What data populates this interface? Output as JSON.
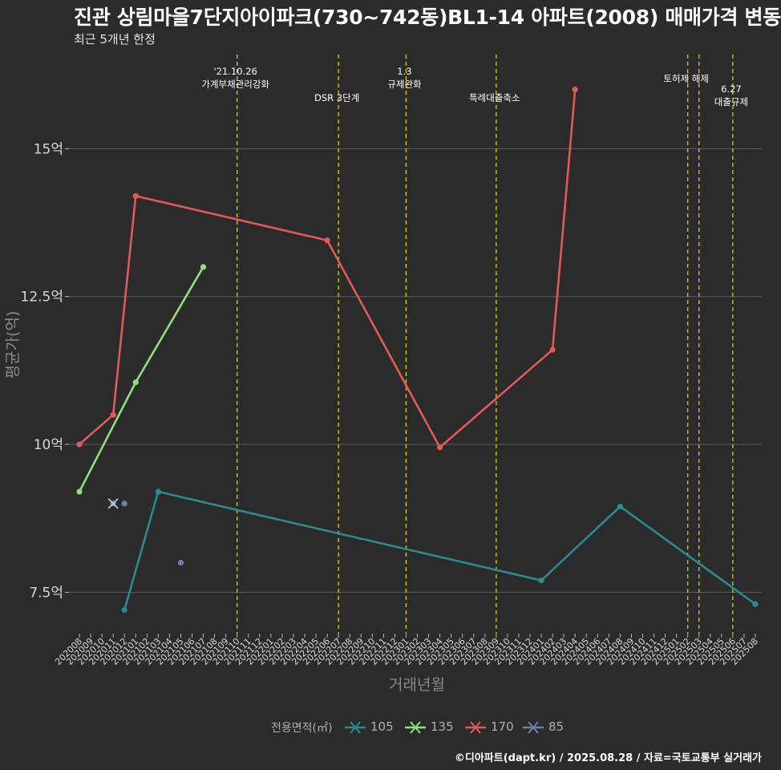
{
  "header": {
    "title": "진관 상림마을7단지아이파크(730~742동)BL1-14 아파트(2008) 매매가격 변동",
    "subtitle": "최근 5개년 한정"
  },
  "caption": "©디아파트(dapt.kr) / 2025.08.28 / 자료=국토교통부 실거래가",
  "legend": {
    "title": "전용면적(㎡)",
    "items": [
      {
        "label": "105",
        "color": "#2b8c8c"
      },
      {
        "label": "135",
        "color": "#8ee07a"
      },
      {
        "label": "170",
        "color": "#e05a5a"
      },
      {
        "label": "85",
        "color": "#6f7fa6"
      }
    ]
  },
  "chart_data": {
    "type": "line",
    "xlabel": "거래년월",
    "ylabel": "평균가(억)",
    "categories": [
      "202008",
      "202009",
      "202010",
      "202011",
      "202012",
      "202101",
      "202102",
      "202103",
      "202104",
      "202105",
      "202106",
      "202107",
      "202108",
      "202109",
      "202110",
      "202111",
      "202112",
      "202201",
      "202202",
      "202203",
      "202204",
      "202205",
      "202206",
      "202207",
      "202208",
      "202209",
      "202210",
      "202211",
      "202212",
      "202301",
      "202302",
      "202303",
      "202304",
      "202305",
      "202306",
      "202307",
      "202308",
      "202309",
      "202310",
      "202311",
      "202312",
      "202401",
      "202402",
      "202403",
      "202404",
      "202405",
      "202406",
      "202407",
      "202408",
      "202409",
      "202410",
      "202411",
      "202412",
      "202501",
      "202502",
      "202503",
      "202504",
      "202505",
      "202506",
      "202507",
      "202508"
    ],
    "y_ticks": [
      7.5,
      10,
      12.5,
      15
    ],
    "y_tick_labels": [
      "7.5억",
      "10억",
      "12.5억",
      "15억"
    ],
    "ylim": [
      6.8,
      16.7
    ],
    "grid": "horizontal",
    "series": [
      {
        "name": "105",
        "color": "#2b8c8c",
        "line": true,
        "points": [
          [
            "202012",
            7.2
          ],
          [
            "202103",
            9.2
          ],
          [
            "202401",
            7.7
          ],
          [
            "202408",
            8.95
          ],
          [
            "202508",
            7.3
          ]
        ]
      },
      {
        "name": "135",
        "color": "#8ee07a",
        "line": true,
        "points": [
          [
            "202008",
            9.2
          ],
          [
            "202101",
            11.05
          ],
          [
            "202107",
            13.0
          ]
        ]
      },
      {
        "name": "170",
        "color": "#e05a5a",
        "line": true,
        "points": [
          [
            "202008",
            10.0
          ],
          [
            "202011",
            10.5
          ],
          [
            "202101",
            14.2
          ],
          [
            "202206",
            13.45
          ],
          [
            "202304",
            9.95
          ],
          [
            "202402",
            11.6
          ],
          [
            "202404",
            16.0
          ]
        ]
      },
      {
        "name": "85",
        "color": "#6f7fa6",
        "line": false,
        "points": [
          [
            "202011",
            9.0
          ],
          [
            "202012",
            9.0
          ],
          [
            "202105",
            8.0
          ]
        ]
      }
    ],
    "annotations": [
      {
        "x": "202110",
        "lines": [
          "'21.10.26",
          "가계부채관리강화"
        ],
        "level": 0
      },
      {
        "x": "202207",
        "lines": [
          "DSR 3단계"
        ],
        "level": 2
      },
      {
        "x": "202301",
        "lines": [
          "1.3",
          "규제완화"
        ],
        "level": 0
      },
      {
        "x": "202309",
        "lines": [
          "특례대출축소"
        ],
        "level": 2
      },
      {
        "x": "202502",
        "lines": [
          "토허제 해제"
        ],
        "level": 1
      },
      {
        "x": "202503",
        "lines": [],
        "level": 1
      },
      {
        "x": "202506",
        "lines": [
          "6.27",
          "대출규제"
        ],
        "level": 1.8
      }
    ]
  }
}
